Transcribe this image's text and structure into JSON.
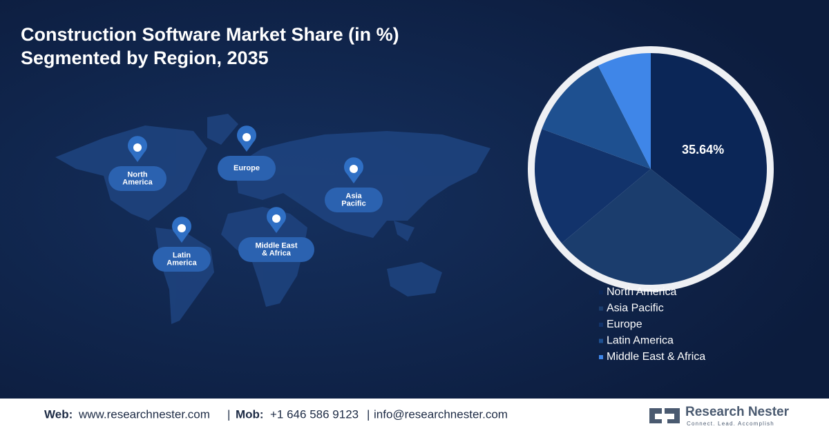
{
  "chart_data": {
    "type": "pie",
    "title": "Construction Software Market Share (in %)",
    "subtitle": "Segmented by Region, 2035",
    "categories": [
      "North America",
      "Asia Pacific",
      "Europe",
      "Latin America",
      "Middle East & Africa"
    ],
    "values": [
      35.64,
      28.3,
      16.7,
      11.9,
      7.5
    ],
    "value_labels": [
      "35.64%",
      null,
      null,
      null,
      null
    ],
    "colors": [
      "#0b2657",
      "#1b3d6d",
      "#12336b",
      "#1e5090",
      "#3f86e8"
    ],
    "legend": "bottom-right"
  },
  "map": {
    "pins": [
      {
        "lines": [
          "North",
          "America"
        ]
      },
      {
        "lines": [
          "Europe"
        ]
      },
      {
        "lines": [
          "Asia",
          "Pacific"
        ]
      },
      {
        "lines": [
          "Middle East",
          "& Africa"
        ]
      },
      {
        "lines": [
          "Latin",
          "America"
        ]
      }
    ]
  },
  "footer": {
    "web_label": "Web:",
    "web": "www.researchnester.com",
    "sep": "|",
    "mob_label": "Mob:",
    "mob": "+1 646 586 9123",
    "email": "info@researchnester.com",
    "brand": "Research Nester",
    "tagline": "Connect. Lead. Accomplish"
  }
}
